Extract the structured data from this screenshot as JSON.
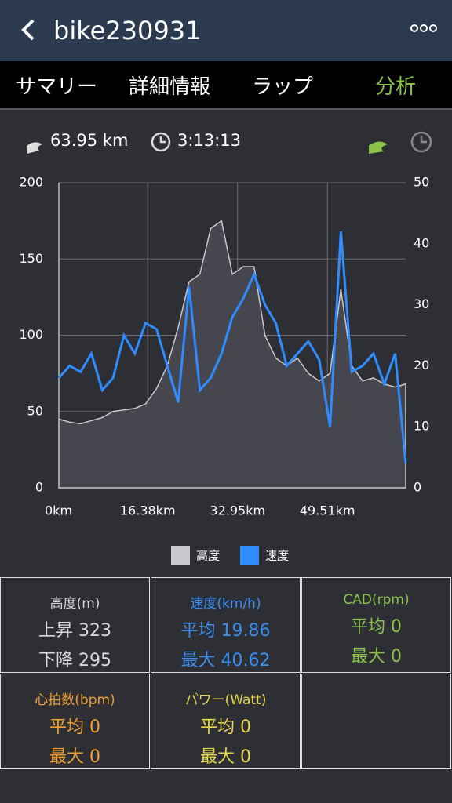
{
  "header": {
    "title": "bike230931"
  },
  "tabs": [
    "サマリー",
    "詳細情報",
    "ラップ",
    "分析"
  ],
  "summary": {
    "distance": "63.95 km",
    "time": "3:13:13"
  },
  "chart_data": {
    "type": "line",
    "x": [
      0,
      2,
      4,
      6,
      8,
      10,
      12,
      14,
      16,
      18,
      20,
      22,
      24,
      26,
      28,
      30,
      32,
      34,
      36,
      38,
      40,
      42,
      44,
      46,
      48,
      50,
      52,
      54,
      56,
      58,
      60,
      62,
      63.95
    ],
    "series": [
      {
        "name": "高度",
        "color": "#c8c8cc",
        "type": "area",
        "values": [
          45,
          43,
          42,
          44,
          46,
          50,
          51,
          52,
          55,
          65,
          80,
          105,
          135,
          140,
          170,
          175,
          140,
          145,
          145,
          100,
          85,
          80,
          85,
          75,
          70,
          75,
          130,
          80,
          70,
          72,
          68,
          66,
          68
        ]
      },
      {
        "name": "速度",
        "color": "#2f8cff",
        "axis": "y2",
        "values": [
          18,
          20,
          19,
          22,
          16,
          18,
          25,
          22,
          27,
          26,
          20,
          14,
          33,
          16,
          18,
          22,
          28,
          31,
          35,
          30,
          27,
          20,
          22,
          24,
          21,
          10,
          42,
          19,
          20,
          22,
          17,
          22,
          4
        ]
      }
    ],
    "xlim": [
      0,
      63.95
    ],
    "xticks": [
      {
        "value": 0,
        "label": "0km"
      },
      {
        "value": 16.38,
        "label": "16.38km"
      },
      {
        "value": 32.95,
        "label": "32.95km"
      },
      {
        "value": 49.51,
        "label": "49.51km"
      }
    ],
    "ylim": [
      0,
      200
    ],
    "yticks": [
      0,
      50,
      100,
      150,
      200
    ],
    "y2lim": [
      0,
      50
    ],
    "y2ticks": [
      0,
      10,
      20,
      30,
      40,
      50
    ],
    "grid": true
  },
  "stats": [
    {
      "title": "高度(m)",
      "lines": [
        "上昇 323",
        "下降 295"
      ],
      "color": "#d8d8d8"
    },
    {
      "title": "速度(km/h)",
      "lines": [
        "平均 19.86",
        "最大 40.62"
      ],
      "color": "#3a8ef0"
    },
    {
      "title": "CAD(rpm)",
      "lines": [
        "平均 0",
        "最大 0"
      ],
      "color": "#8bc34a"
    },
    {
      "title": "心拍数(bpm)",
      "lines": [
        "平均 0",
        "最大 0"
      ],
      "color": "#f0a030"
    },
    {
      "title": "パワー(Watt)",
      "lines": [
        "平均 0",
        "最大 0"
      ],
      "color": "#e8d84a"
    }
  ]
}
